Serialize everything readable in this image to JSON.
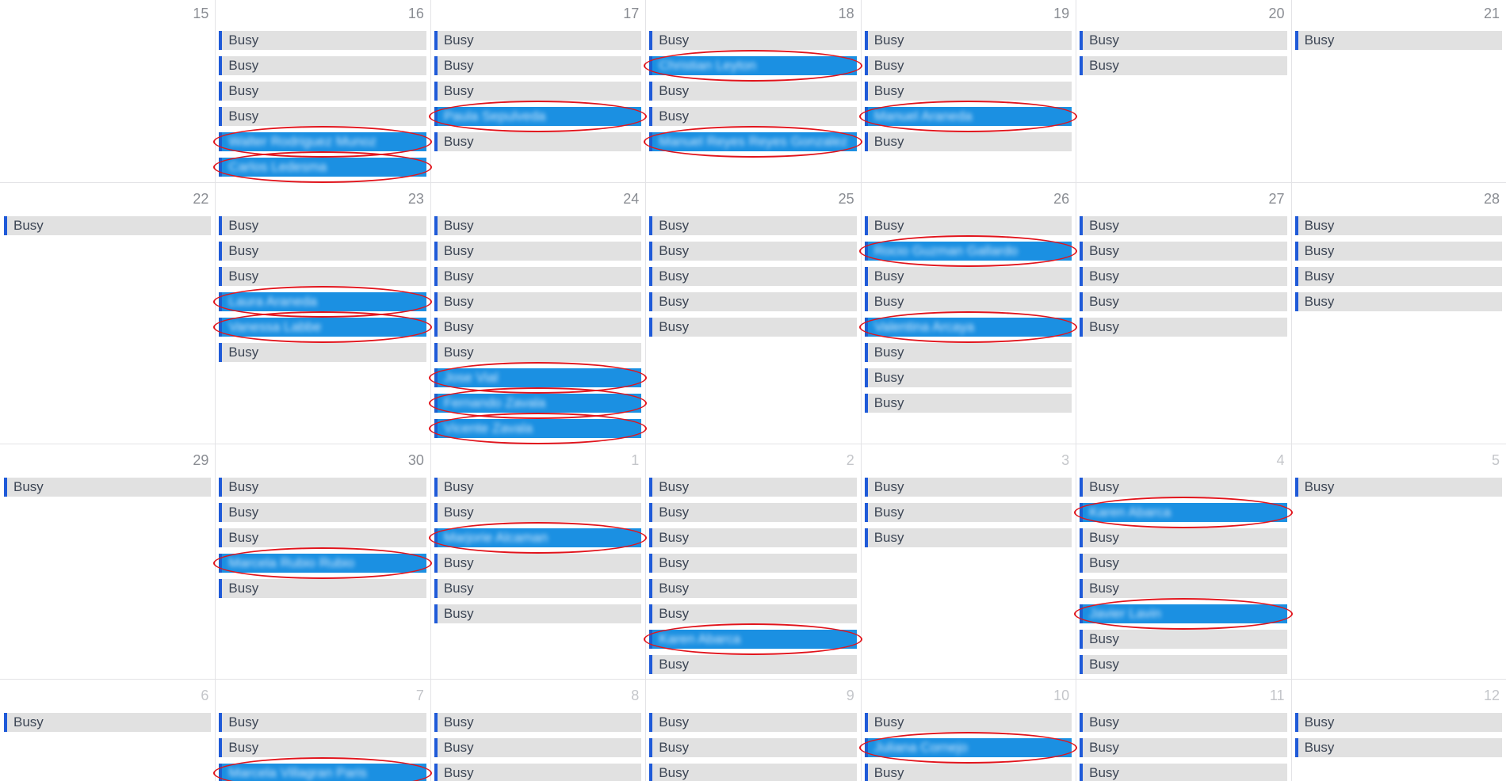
{
  "weeks": [
    {
      "days": [
        {
          "day": 15,
          "events": []
        },
        {
          "day": 16,
          "events": [
            {
              "label": "Busy"
            },
            {
              "label": "Busy"
            },
            {
              "label": "Busy"
            },
            {
              "label": "Busy"
            },
            {
              "label": "Walter Rodriguez Munoz",
              "highlighted": true
            },
            {
              "label": "Carlos Ledesma",
              "highlighted": true
            }
          ]
        },
        {
          "day": 17,
          "events": [
            {
              "label": "Busy"
            },
            {
              "label": "Busy"
            },
            {
              "label": "Busy"
            },
            {
              "label": "Paula Sepulveda",
              "highlighted": true
            },
            {
              "label": "Busy"
            }
          ]
        },
        {
          "day": 18,
          "events": [
            {
              "label": "Busy"
            },
            {
              "label": "Christian Leyton",
              "highlighted": true
            },
            {
              "label": "Busy"
            },
            {
              "label": "Busy"
            },
            {
              "label": "Manuel Reyes Reyes Gonzalez",
              "highlighted": true
            }
          ]
        },
        {
          "day": 19,
          "events": [
            {
              "label": "Busy"
            },
            {
              "label": "Busy"
            },
            {
              "label": "Busy"
            },
            {
              "label": "Manuel Araneda",
              "highlighted": true
            },
            {
              "label": "Busy"
            }
          ]
        },
        {
          "day": 20,
          "events": [
            {
              "label": "Busy"
            },
            {
              "label": "Busy"
            }
          ]
        },
        {
          "day": 21,
          "events": [
            {
              "label": "Busy"
            }
          ]
        }
      ]
    },
    {
      "days": [
        {
          "day": 22,
          "events": [
            {
              "label": "Busy"
            }
          ]
        },
        {
          "day": 23,
          "events": [
            {
              "label": "Busy"
            },
            {
              "label": "Busy"
            },
            {
              "label": "Busy"
            },
            {
              "label": "Laura Araneda",
              "highlighted": true
            },
            {
              "label": "Vanessa Labbe",
              "highlighted": true
            },
            {
              "label": "Busy"
            }
          ]
        },
        {
          "day": 24,
          "events": [
            {
              "label": "Busy"
            },
            {
              "label": "Busy"
            },
            {
              "label": "Busy"
            },
            {
              "label": "Busy"
            },
            {
              "label": "Busy"
            },
            {
              "label": "Busy"
            },
            {
              "label": "Jose Vial",
              "highlighted": true
            },
            {
              "label": "Fernando Zavala",
              "highlighted": true
            },
            {
              "label": "Vicente Zavala",
              "highlighted": true
            }
          ]
        },
        {
          "day": 25,
          "events": [
            {
              "label": "Busy"
            },
            {
              "label": "Busy"
            },
            {
              "label": "Busy"
            },
            {
              "label": "Busy"
            },
            {
              "label": "Busy"
            }
          ]
        },
        {
          "day": 26,
          "events": [
            {
              "label": "Busy"
            },
            {
              "label": "Rocio Guzman Gallardo",
              "highlighted": true
            },
            {
              "label": "Busy"
            },
            {
              "label": "Busy"
            },
            {
              "label": "Valentina Arcaya",
              "highlighted": true
            },
            {
              "label": "Busy"
            },
            {
              "label": "Busy"
            },
            {
              "label": "Busy"
            }
          ]
        },
        {
          "day": 27,
          "events": [
            {
              "label": "Busy"
            },
            {
              "label": "Busy"
            },
            {
              "label": "Busy"
            },
            {
              "label": "Busy"
            },
            {
              "label": "Busy"
            }
          ]
        },
        {
          "day": 28,
          "events": [
            {
              "label": "Busy"
            },
            {
              "label": "Busy"
            },
            {
              "label": "Busy"
            },
            {
              "label": "Busy"
            }
          ]
        }
      ]
    },
    {
      "days": [
        {
          "day": 29,
          "events": [
            {
              "label": "Busy"
            }
          ]
        },
        {
          "day": 30,
          "events": [
            {
              "label": "Busy"
            },
            {
              "label": "Busy"
            },
            {
              "label": "Busy"
            },
            {
              "label": "Marcela Rubio Rubio",
              "highlighted": true
            },
            {
              "label": "Busy"
            }
          ]
        },
        {
          "day": 1,
          "muted": true,
          "events": [
            {
              "label": "Busy"
            },
            {
              "label": "Busy"
            },
            {
              "label": "Marjorie Alcaman",
              "highlighted": true
            },
            {
              "label": "Busy"
            },
            {
              "label": "Busy"
            },
            {
              "label": "Busy"
            }
          ]
        },
        {
          "day": 2,
          "muted": true,
          "events": [
            {
              "label": "Busy"
            },
            {
              "label": "Busy"
            },
            {
              "label": "Busy"
            },
            {
              "label": "Busy"
            },
            {
              "label": "Busy"
            },
            {
              "label": "Busy"
            },
            {
              "label": "Karen Abarca",
              "highlighted": true
            },
            {
              "label": "Busy"
            }
          ]
        },
        {
          "day": 3,
          "muted": true,
          "events": [
            {
              "label": "Busy"
            },
            {
              "label": "Busy"
            },
            {
              "label": "Busy"
            }
          ]
        },
        {
          "day": 4,
          "muted": true,
          "events": [
            {
              "label": "Busy"
            },
            {
              "label": "Karen Abarca",
              "highlighted": true
            },
            {
              "label": "Busy"
            },
            {
              "label": "Busy"
            },
            {
              "label": "Busy"
            },
            {
              "label": "Javier Lavin",
              "highlighted": true
            },
            {
              "label": "Busy"
            },
            {
              "label": "Busy"
            }
          ]
        },
        {
          "day": 5,
          "muted": true,
          "events": [
            {
              "label": "Busy"
            }
          ]
        }
      ]
    },
    {
      "days": [
        {
          "day": 6,
          "muted": true,
          "events": [
            {
              "label": "Busy"
            }
          ]
        },
        {
          "day": 7,
          "muted": true,
          "events": [
            {
              "label": "Busy"
            },
            {
              "label": "Busy"
            },
            {
              "label": "Marcela Villagran Paris",
              "highlighted": true
            }
          ]
        },
        {
          "day": 8,
          "muted": true,
          "events": [
            {
              "label": "Busy"
            },
            {
              "label": "Busy"
            },
            {
              "label": "Busy"
            }
          ]
        },
        {
          "day": 9,
          "muted": true,
          "events": [
            {
              "label": "Busy"
            },
            {
              "label": "Busy"
            },
            {
              "label": "Busy"
            }
          ]
        },
        {
          "day": 10,
          "muted": true,
          "events": [
            {
              "label": "Busy"
            },
            {
              "label": "Juliana Cornejo",
              "highlighted": true
            },
            {
              "label": "Busy"
            }
          ]
        },
        {
          "day": 11,
          "muted": true,
          "events": [
            {
              "label": "Busy"
            },
            {
              "label": "Busy"
            },
            {
              "label": "Busy"
            }
          ]
        },
        {
          "day": 12,
          "muted": true,
          "events": [
            {
              "label": "Busy"
            },
            {
              "label": "Busy"
            }
          ]
        }
      ]
    }
  ]
}
